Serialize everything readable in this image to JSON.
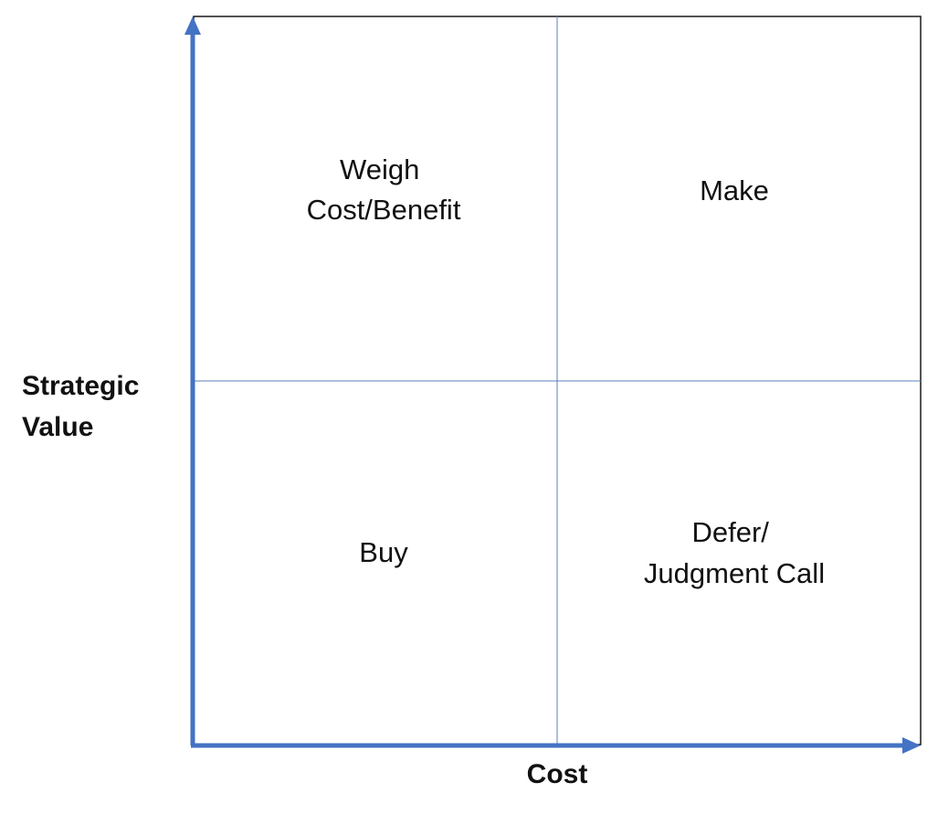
{
  "colors": {
    "axis": "#4472c4",
    "border": "#1a1a1a",
    "divider": "#5b7fb8",
    "text": "#111111",
    "background": "#ffffff"
  },
  "axes": {
    "y_title_lines": [
      "Strategic",
      "Value"
    ],
    "x_title": "Cost"
  },
  "quadrants": {
    "top_left": [
      "Weigh",
      "Cost/Benefit"
    ],
    "top_right": [
      "Make"
    ],
    "bottom_left": [
      "Buy"
    ],
    "bottom_right": [
      "Defer/",
      "Judgment Call"
    ]
  }
}
